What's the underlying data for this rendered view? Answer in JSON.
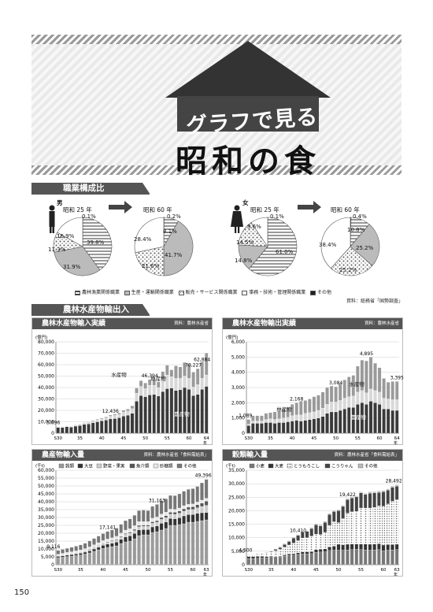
{
  "header": {
    "title_top": "グラフで見る",
    "title_main": "昭和の食"
  },
  "section1": {
    "title": "職業構成比",
    "source": "資料：総務省「国勢調査」",
    "male": "男",
    "female": "女",
    "year_a": "昭和 25 年",
    "year_b": "昭和 60 年",
    "legend": [
      "農林漁業関係職業",
      "生産・運輸関係職業",
      "販売・サービス関係職業",
      "事務・技術・管理関係職業",
      "その他"
    ]
  },
  "section2": {
    "title": "農林水産物輸出入"
  },
  "charts": {
    "c1": {
      "title": "農林水産物輸入実績",
      "source": "資料：農林水産省",
      "unit": "(億円)",
      "labels": {
        "suisan": "水産物",
        "ringyo": "林産物",
        "nosan": "農産物"
      },
      "callouts": [
        "5,696",
        "12,436",
        "46,394",
        "70,227",
        "62,884"
      ]
    },
    "c2": {
      "title": "農林水産物輸出実績",
      "source": "資料：農林水産省",
      "unit": "(億円)",
      "labels": {
        "suisan": "水産物",
        "ringyo": "林産物",
        "nosan": "農産物"
      },
      "callouts": [
        "1,089",
        "2,168",
        "3,084",
        "4,895",
        "3,395"
      ]
    },
    "c3": {
      "title": "農産物輸入量",
      "source": "資料：農林水産省「食料需給表」",
      "unit": "(千t)",
      "legend": [
        "穀類",
        "大豆",
        "野菜・果実",
        "魚介類",
        "砂糖類",
        "その他"
      ],
      "callouts": [
        "9,116",
        "17,141",
        "31,163",
        "49,396"
      ]
    },
    "c4": {
      "title": "穀類輸入量",
      "source": "資料：農林水産省「食料需給表」",
      "unit": "(千t)",
      "legend": [
        "小麦",
        "大麦",
        "とうもろこし",
        "こうりゃん",
        "その他"
      ],
      "callouts": [
        "4,500",
        "10,410",
        "19,422",
        "28,492"
      ]
    }
  },
  "page_number": "150",
  "chart_data": [
    {
      "type": "pie",
      "title": "職業構成比 男 昭和25年",
      "categories": [
        "農林漁業関係職業",
        "生産・運輸関係職業",
        "販売・サービス関係職業",
        "事務・技術・管理関係職業",
        "その他"
      ],
      "values": [
        39.8,
        31.9,
        11.3,
        16.9,
        0.1
      ],
      "labels": [
        "39.8%",
        "31.9%",
        "11.3%",
        "16.9%",
        "0.1%"
      ]
    },
    {
      "type": "pie",
      "title": "職業構成比 男 昭和60年",
      "categories": [
        "農林漁業関係職業",
        "生産・運輸関係職業",
        "販売・サービス関係職業",
        "事務・技術・管理関係職業",
        "その他"
      ],
      "values": [
        8.1,
        41.7,
        21.6,
        28.4,
        0.2
      ],
      "labels": [
        "8.1%",
        "41.7%",
        "21.6%",
        "28.4%",
        "0.2%"
      ]
    },
    {
      "type": "pie",
      "title": "職業構成比 女 昭和25年",
      "categories": [
        "農林漁業関係職業",
        "生産・運輸関係職業",
        "販売・サービス関係職業",
        "事務・技術・管理関係職業",
        "その他"
      ],
      "values": [
        61.0,
        14.8,
        14.5,
        9.6,
        0.1
      ],
      "labels": [
        "61.0%",
        "14.8%",
        "14.5%",
        "9.6%",
        "0.1%"
      ]
    },
    {
      "type": "pie",
      "title": "職業構成比 女 昭和60年",
      "categories": [
        "農林漁業関係職業",
        "生産・運輸関係職業",
        "販売・サービス関係職業",
        "事務・技術・管理関係職業",
        "その他"
      ],
      "values": [
        10.8,
        25.2,
        25.2,
        38.4,
        0.4
      ],
      "labels": [
        "10.8%",
        "25.2%",
        "25.2%",
        "38.4%",
        "0.4%"
      ]
    },
    {
      "type": "bar",
      "stacked": true,
      "title": "農林水産物輸入実績",
      "ylabel": "(億円)",
      "ylim": [
        0,
        80000
      ],
      "x": [
        "S30",
        "31",
        "32",
        "33",
        "34",
        "35",
        "36",
        "37",
        "38",
        "39",
        "40",
        "41",
        "42",
        "43",
        "44",
        "45",
        "46",
        "47",
        "48",
        "49",
        "50",
        "51",
        "52",
        "53",
        "54",
        "55",
        "56",
        "57",
        "58",
        "59",
        "60",
        "61",
        "62",
        "63",
        "64"
      ],
      "xticks": [
        "S30",
        "35",
        "40",
        "45",
        "50",
        "55",
        "60",
        "64"
      ],
      "xtick_suffix": "年",
      "series": [
        {
          "name": "農産物",
          "values": [
            5000,
            5100,
            5600,
            5300,
            6200,
            6800,
            7800,
            8100,
            9200,
            10000,
            10800,
            11500,
            12500,
            12800,
            13500,
            15000,
            15800,
            17500,
            28000,
            33000,
            32000,
            33500,
            34000,
            32500,
            36500,
            39000,
            39500,
            37500,
            38000,
            40000,
            38500,
            33000,
            34000,
            38500,
            41000
          ]
        },
        {
          "name": "林産物",
          "values": [
            300,
            400,
            500,
            500,
            600,
            700,
            900,
            1000,
            1300,
            1500,
            1500,
            1800,
            2400,
            2800,
            3000,
            3500,
            3600,
            4000,
            7000,
            8000,
            7000,
            8500,
            8000,
            7500,
            11000,
            12000,
            10000,
            10500,
            10000,
            10000,
            9500,
            7500,
            8500,
            9500,
            10000
          ]
        },
        {
          "name": "水産物",
          "values": [
            400,
            300,
            300,
            300,
            400,
            400,
            400,
            500,
            600,
            700,
            800,
            900,
            1000,
            1200,
            1300,
            1500,
            1700,
            2500,
            4500,
            5000,
            5000,
            5000,
            5000,
            5000,
            6500,
            8500,
            6000,
            11000,
            10000,
            12000,
            12500,
            13000,
            14000,
            14500,
            19200
          ]
        }
      ],
      "annotations": [
        "5,696",
        "12,436",
        "46,394",
        "70,227",
        "62,884"
      ]
    },
    {
      "type": "bar",
      "stacked": true,
      "title": "農林水産物輸出実績",
      "ylabel": "(億円)",
      "ylim": [
        0,
        6000
      ],
      "x": [
        "S30",
        "31",
        "32",
        "33",
        "34",
        "35",
        "36",
        "37",
        "38",
        "39",
        "40",
        "41",
        "42",
        "43",
        "44",
        "45",
        "46",
        "47",
        "48",
        "49",
        "50",
        "51",
        "52",
        "53",
        "54",
        "55",
        "56",
        "57",
        "58",
        "59",
        "60",
        "61",
        "62",
        "63",
        "64"
      ],
      "xticks": [
        "S30",
        "35",
        "40",
        "45",
        "50",
        "55",
        "60",
        "64"
      ],
      "xtick_suffix": "年",
      "series": [
        {
          "name": "農産物",
          "values": [
            500,
            650,
            650,
            650,
            700,
            700,
            650,
            700,
            700,
            750,
            800,
            850,
            800,
            850,
            900,
            950,
            1000,
            1100,
            1300,
            1400,
            1400,
            1500,
            1600,
            1700,
            1700,
            1900,
            2000,
            1900,
            2100,
            2000,
            1900,
            1600,
            1600,
            1500,
            1500
          ]
        },
        {
          "name": "林産物",
          "values": [
            100,
            150,
            150,
            150,
            200,
            250,
            250,
            250,
            300,
            300,
            350,
            350,
            400,
            450,
            450,
            450,
            500,
            550,
            600,
            650,
            650,
            650,
            700,
            700,
            750,
            800,
            800,
            750,
            800,
            800,
            800,
            700,
            650,
            700,
            700
          ]
        },
        {
          "name": "水産物",
          "values": [
            300,
            350,
            350,
            350,
            400,
            400,
            500,
            500,
            600,
            650,
            750,
            800,
            900,
            850,
            900,
            1000,
            1000,
            1050,
            1100,
            1050,
            1000,
            1100,
            1200,
            1300,
            1350,
            1700,
            2000,
            2100,
            2100,
            1800,
            1600,
            1300,
            1100,
            1200,
            1200
          ]
        }
      ],
      "annotations": [
        "1,089",
        "2,168",
        "3,084",
        "4,895",
        "3,395"
      ]
    },
    {
      "type": "bar",
      "stacked": true,
      "title": "農産物輸入量",
      "ylabel": "(千t)",
      "ylim": [
        0,
        60000
      ],
      "x": [
        "S30",
        "31",
        "32",
        "33",
        "34",
        "35",
        "36",
        "37",
        "38",
        "39",
        "40",
        "41",
        "42",
        "43",
        "44",
        "45",
        "46",
        "47",
        "48",
        "49",
        "50",
        "51",
        "52",
        "53",
        "54",
        "55",
        "56",
        "57",
        "58",
        "59",
        "60",
        "61",
        "62",
        "63"
      ],
      "xticks": [
        "S30",
        "35",
        "40",
        "45",
        "50",
        "55",
        "60",
        "63"
      ],
      "xtick_suffix": "年",
      "series": [
        {
          "name": "穀類",
          "values": [
            4500,
            4800,
            5200,
            5500,
            5800,
            6200,
            6800,
            7500,
            8500,
            9500,
            10400,
            11000,
            11500,
            12000,
            13500,
            14500,
            15000,
            16500,
            18500,
            19000,
            19000,
            20500,
            21000,
            22000,
            23000,
            25000,
            25000,
            25500,
            26000,
            27000,
            27000,
            27500,
            28000,
            28500
          ]
        },
        {
          "name": "大豆",
          "values": [
            800,
            900,
            1000,
            1000,
            1100,
            1100,
            1200,
            1300,
            1500,
            1600,
            1900,
            2100,
            2200,
            2400,
            2600,
            3200,
            3300,
            3400,
            3600,
            3300,
            3300,
            3500,
            3600,
            4300,
            4200,
            4400,
            4200,
            4300,
            5000,
            4800,
            4900,
            5100,
            5000,
            4700
          ]
        },
        {
          "name": "野菜・果実",
          "values": [
            200,
            250,
            300,
            300,
            400,
            500,
            600,
            700,
            900,
            1000,
            1000,
            1100,
            1200,
            1300,
            1500,
            1600,
            1700,
            1800,
            2000,
            2100,
            2100,
            2300,
            2400,
            2500,
            2700,
            2700,
            2800,
            2900,
            3000,
            3200,
            3200,
            3500,
            4000,
            4500
          ]
        },
        {
          "name": "魚介類",
          "values": [
            100,
            100,
            150,
            150,
            200,
            200,
            250,
            300,
            300,
            300,
            350,
            350,
            400,
            450,
            500,
            600,
            700,
            800,
            900,
            800,
            800,
            950,
            1000,
            1200,
            1300,
            1200,
            1300,
            1400,
            1500,
            1600,
            1700,
            2000,
            2200,
            2700
          ]
        },
        {
          "name": "砂糖類",
          "values": [
            1100,
            1200,
            1200,
            1300,
            1300,
            1400,
            1400,
            1500,
            1500,
            1600,
            1700,
            1800,
            1800,
            1900,
            2000,
            2100,
            2200,
            2300,
            2400,
            2200,
            2200,
            2300,
            2300,
            2200,
            2200,
            2000,
            1800,
            1900,
            2000,
            1800,
            1800,
            1700,
            1800,
            1800
          ]
        },
        {
          "name": "その他",
          "values": [
            2400,
            2500,
            2600,
            2800,
            3000,
            3200,
            3400,
            3800,
            4000,
            4200,
            4400,
            4800,
            5000,
            5200,
            5600,
            6000,
            6200,
            6600,
            7000,
            7300,
            7000,
            7500,
            8000,
            8300,
            8500,
            8700,
            8800,
            9000,
            9200,
            9500,
            9700,
            9900,
            11000,
            12000
          ]
        }
      ],
      "annotations": [
        "9,116",
        "17,141",
        "31,163",
        "49,396"
      ]
    },
    {
      "type": "bar",
      "stacked": true,
      "title": "穀類輸入量",
      "ylabel": "(千t)",
      "ylim": [
        0,
        35000
      ],
      "x": [
        "S30",
        "31",
        "32",
        "33",
        "34",
        "35",
        "36",
        "37",
        "38",
        "39",
        "40",
        "41",
        "42",
        "43",
        "44",
        "45",
        "46",
        "47",
        "48",
        "49",
        "50",
        "51",
        "52",
        "53",
        "54",
        "55",
        "56",
        "57",
        "58",
        "59",
        "60",
        "61",
        "62",
        "63"
      ],
      "xticks": [
        "S30",
        "35",
        "40",
        "45",
        "50",
        "55",
        "60",
        "63"
      ],
      "xtick_suffix": "年",
      "series": [
        {
          "name": "小麦",
          "values": [
            2300,
            2300,
            2400,
            2500,
            2500,
            2700,
            2700,
            2800,
            3200,
            3500,
            3600,
            3800,
            4000,
            4000,
            4100,
            4600,
            4700,
            4800,
            5300,
            5400,
            5400,
            5400,
            5500,
            5600,
            5700,
            5600,
            5500,
            5400,
            5500,
            5600,
            5200,
            5400,
            5500,
            5600
          ]
        },
        {
          "name": "大麦",
          "values": [
            700,
            700,
            700,
            600,
            500,
            400,
            300,
            300,
            400,
            500,
            500,
            600,
            700,
            800,
            800,
            1000,
            1100,
            1100,
            1300,
            1500,
            2200,
            2000,
            2100,
            2100,
            2000,
            2100,
            2200,
            2200,
            2200,
            2200,
            2100,
            2100,
            2000,
            2000
          ]
        },
        {
          "name": "とうもろこし",
          "values": [
            700,
            800,
            900,
            1000,
            1500,
            1700,
            2200,
            2600,
            2900,
            3300,
            3900,
            4500,
            5200,
            5200,
            5700,
            5700,
            5400,
            6100,
            8000,
            9000,
            8000,
            9700,
            11500,
            11900,
            12100,
            13300,
            13300,
            13400,
            13500,
            14000,
            14400,
            15000,
            16000,
            16500
          ]
        },
        {
          "name": "こうりゃん",
          "values": [
            0,
            0,
            0,
            0,
            0,
            200,
            500,
            700,
            1000,
            1300,
            1900,
            2000,
            2200,
            2300,
            2800,
            3500,
            3200,
            3700,
            4000,
            3800,
            4400,
            4500,
            5000,
            5100,
            5300,
            5600,
            5000,
            5500,
            5400,
            5000,
            5300,
            5100,
            5200,
            5000
          ]
        },
        {
          "name": "その他",
          "values": [
            200,
            100,
            100,
            100,
            200,
            200,
            200,
            300,
            300,
            300,
            300,
            300,
            300,
            300,
            400,
            400,
            400,
            400,
            400,
            400,
            400,
            400,
            400,
            400,
            400,
            400,
            500,
            500,
            500,
            500,
            500,
            500,
            500,
            500
          ]
        }
      ],
      "annotations": [
        "4,500",
        "10,410",
        "19,422",
        "28,492"
      ]
    }
  ]
}
